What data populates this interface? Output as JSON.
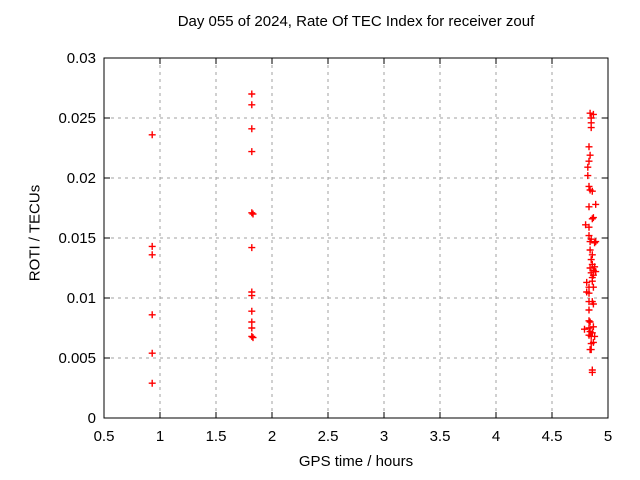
{
  "title": "Day 055 of 2024, Rate Of TEC Index for receiver zouf",
  "chart_data": {
    "type": "scatter",
    "title": "Day 055 of 2024, Rate Of TEC Index for receiver zouf",
    "xlabel": "GPS time / hours",
    "ylabel": "ROTI / TECUs",
    "xlim": [
      0.5,
      5
    ],
    "ylim": [
      0,
      0.03
    ],
    "xticks": [
      0.5,
      1,
      1.5,
      2,
      2.5,
      3,
      3.5,
      4,
      4.5,
      5
    ],
    "xtick_labels": [
      "0.5",
      "1",
      "1.5",
      "2",
      "2.5",
      "3",
      "3.5",
      "4",
      "4.5",
      "5"
    ],
    "yticks": [
      0,
      0.005,
      0.01,
      0.015,
      0.02,
      0.025,
      0.03
    ],
    "ytick_labels": [
      "0",
      "0.005",
      "0.01",
      "0.015",
      "0.02",
      "0.025",
      "0.03"
    ],
    "grid": true,
    "legend": "none",
    "marker": "plus",
    "series": [
      {
        "name": "ROTI",
        "color": "#ff0000",
        "points": [
          [
            0.93,
            0.0236
          ],
          [
            0.93,
            0.0143
          ],
          [
            0.93,
            0.0136
          ],
          [
            0.93,
            0.0086
          ],
          [
            0.93,
            0.0054
          ],
          [
            0.93,
            0.0029
          ],
          [
            1.82,
            0.027
          ],
          [
            1.82,
            0.0261
          ],
          [
            1.82,
            0.0241
          ],
          [
            1.82,
            0.0222
          ],
          [
            1.82,
            0.0171
          ],
          [
            1.83,
            0.017
          ],
          [
            1.82,
            0.0142
          ],
          [
            1.82,
            0.0105
          ],
          [
            1.82,
            0.0102
          ],
          [
            1.82,
            0.0089
          ],
          [
            1.82,
            0.008
          ],
          [
            1.82,
            0.0075
          ],
          [
            1.82,
            0.0068
          ],
          [
            1.83,
            0.0067
          ],
          [
            4.84,
            0.0254
          ],
          [
            4.87,
            0.0253
          ],
          [
            4.85,
            0.025
          ],
          [
            4.85,
            0.0246
          ],
          [
            4.85,
            0.0242
          ],
          [
            4.83,
            0.0226
          ],
          [
            4.84,
            0.0219
          ],
          [
            4.83,
            0.0214
          ],
          [
            4.82,
            0.0209
          ],
          [
            4.82,
            0.0202
          ],
          [
            4.83,
            0.0193
          ],
          [
            4.84,
            0.019
          ],
          [
            4.86,
            0.0189
          ],
          [
            4.89,
            0.0178
          ],
          [
            4.83,
            0.0176
          ],
          [
            4.87,
            0.0167
          ],
          [
            4.86,
            0.0166
          ],
          [
            4.8,
            0.0161
          ],
          [
            4.83,
            0.0159
          ],
          [
            4.83,
            0.0152
          ],
          [
            4.85,
            0.0149
          ],
          [
            4.84,
            0.0147
          ],
          [
            4.89,
            0.0147
          ],
          [
            4.88,
            0.0146
          ],
          [
            4.84,
            0.014
          ],
          [
            4.86,
            0.0136
          ],
          [
            4.85,
            0.0132
          ],
          [
            4.86,
            0.0128
          ],
          [
            4.88,
            0.0126
          ],
          [
            4.84,
            0.0125
          ],
          [
            4.87,
            0.0123
          ],
          [
            4.89,
            0.0122
          ],
          [
            4.85,
            0.0121
          ],
          [
            4.87,
            0.0119
          ],
          [
            4.86,
            0.0117
          ],
          [
            4.86,
            0.0114
          ],
          [
            4.81,
            0.0113
          ],
          [
            4.83,
            0.0109
          ],
          [
            4.87,
            0.0109
          ],
          [
            4.81,
            0.0105
          ],
          [
            4.83,
            0.0104
          ],
          [
            4.83,
            0.0097
          ],
          [
            4.86,
            0.0097
          ],
          [
            4.87,
            0.0095
          ],
          [
            4.83,
            0.009
          ],
          [
            4.83,
            0.0081
          ],
          [
            4.84,
            0.008
          ],
          [
            4.87,
            0.0076
          ],
          [
            4.83,
            0.0075
          ],
          [
            4.79,
            0.0074
          ],
          [
            4.84,
            0.0072
          ],
          [
            4.86,
            0.0071
          ],
          [
            4.83,
            0.0069
          ],
          [
            4.85,
            0.0068
          ],
          [
            4.88,
            0.0068
          ],
          [
            4.87,
            0.0063
          ],
          [
            4.85,
            0.0062
          ],
          [
            4.84,
            0.0057
          ],
          [
            4.85,
            0.0057
          ],
          [
            4.86,
            0.004
          ],
          [
            4.86,
            0.0038
          ]
        ]
      }
    ]
  },
  "colors": {
    "point": "#ff0000",
    "grid": "#a0a0a0",
    "axis": "#000000",
    "background": "#ffffff"
  }
}
